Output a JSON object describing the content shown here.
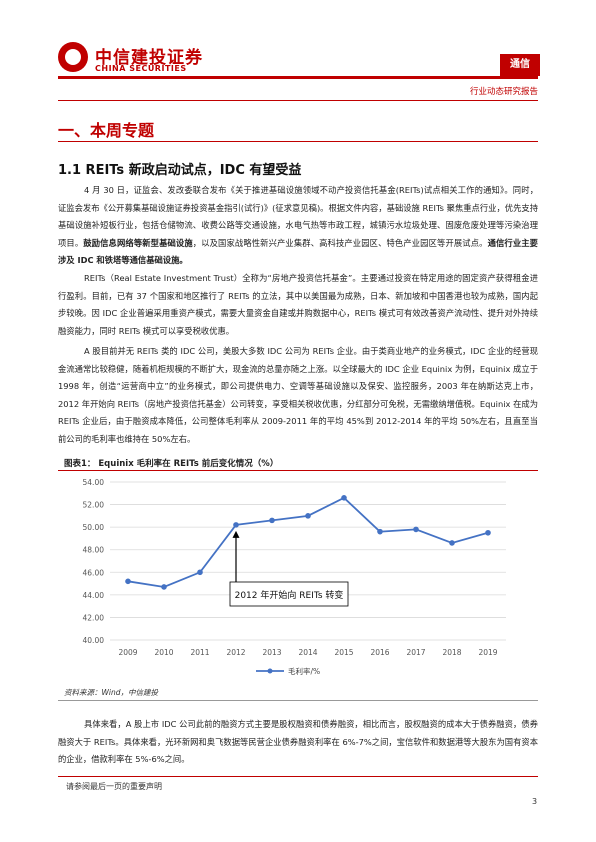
{
  "header": {
    "logo_cn": "中信建投证券",
    "logo_en": "CHINA SECURITIES",
    "section_tag": "通信",
    "report_type": "行业动态研究报告"
  },
  "heading1": "一、本周专题",
  "heading2": "1.1 REITs 新政启动试点，IDC 有望受益",
  "para1": {
    "text": "4 月 30 日，证监会、发改委联合发布《关于推进基础设施领域不动产投资信托基金(REITs)试点相关工作的通知》。同时，证监会发布《公开募集基础设施证券投资基金指引(试行)》(征求意见稿)。根据文件内容，基础设施 REITs 聚焦重点行业，优先支持基础设施补短板行业，包括仓储物流、收费公路等交通设施，水电气热等市政工程，城镇污水垃圾处理、固废危废处理等污染治理项目。",
    "bold1": "鼓励信息网络等新型基础设施",
    "mid": "，以及国家战略性新兴产业集群、高科技产业园区、特色产业园区等开展试点。",
    "bold2": "通信行业主要涉及 IDC 和铁塔等通信基础设施。"
  },
  "para2": "REITs（Real Estate Investment Trust）全称为“房地产投资信托基金”。主要通过投资在特定用途的固定资产获得租金进行盈利。目前，已有 37 个国家和地区推行了 REITs 的立法，其中以美国最为成熟，日本、新加坡和中国香港也较为成熟，国内起步较晚。因 IDC 企业普遍采用重资产模式，需要大量资金自建或并购数据中心，REITs 模式可有效改善资产流动性、提升对外持续融资能力，同时 REITs 模式可以享受税收优惠。",
  "para3": "A 股目前并无 REITs 类的 IDC 公司，美股大多数 IDC 公司为 REITs 企业。由于类商业地产的业务模式，IDC 企业的经营现金流通常比较稳健，随着机柜规模的不断扩大，现金流的总量亦随之上涨。以全球最大的 IDC 企业 Equinix 为例，Equinix 成立于 1998 年，创造“运营商中立”的业务模式，即公司提供电力、空调等基础设施以及保安、监控服务，2003 年在纳斯达克上市，2012 年开始向 REITs（房地产投资信托基金）公司转变，享受相关税收优惠，分红部分可免税，无需缴纳增值税。Equinix 在成为 REITs 企业后，由于融资成本降低，公司整体毛利率从 2009-2011 年的平均 45%到 2012-2014 年的平均 50%左右，且直至当前公司的毛利率也维持在 50%左右。",
  "figure": {
    "caption": "图表1：  Equinix 毛利率在 REITs 前后变化情况（%）",
    "annotation": "2012 年开始向 REITs 转变",
    "source": "资料来源：Wind，中信建投"
  },
  "chart_data": {
    "type": "line",
    "categories": [
      "2009",
      "2010",
      "2011",
      "2012",
      "2013",
      "2014",
      "2015",
      "2016",
      "2017",
      "2018",
      "2019"
    ],
    "series": [
      {
        "name": "毛利率/%",
        "values": [
          45.2,
          44.7,
          46.0,
          50.2,
          50.6,
          51.0,
          52.6,
          49.6,
          49.8,
          48.6,
          49.5
        ]
      }
    ],
    "ylim": [
      40,
      54
    ],
    "yticks": [
      "40.00",
      "42.00",
      "44.00",
      "46.00",
      "48.00",
      "50.00",
      "52.00",
      "54.00"
    ],
    "grid": true,
    "legend": "bottom",
    "color": "#4472c4"
  },
  "para4": "具体来看，A 股上市 IDC 公司此前的融资方式主要是股权融资和债券融资，相比而言，股权融资的成本大于债券融资，债券融资大于 REITs。具体来看，光环新网和奥飞数据等民营企业债券融资利率在 6%-7%之间，宝信软件和数据港等大股东为国有资本的企业，借款利率在 5%-6%之间。",
  "footer": {
    "disclaimer": "请参阅最后一页的重要声明",
    "page": "3"
  }
}
